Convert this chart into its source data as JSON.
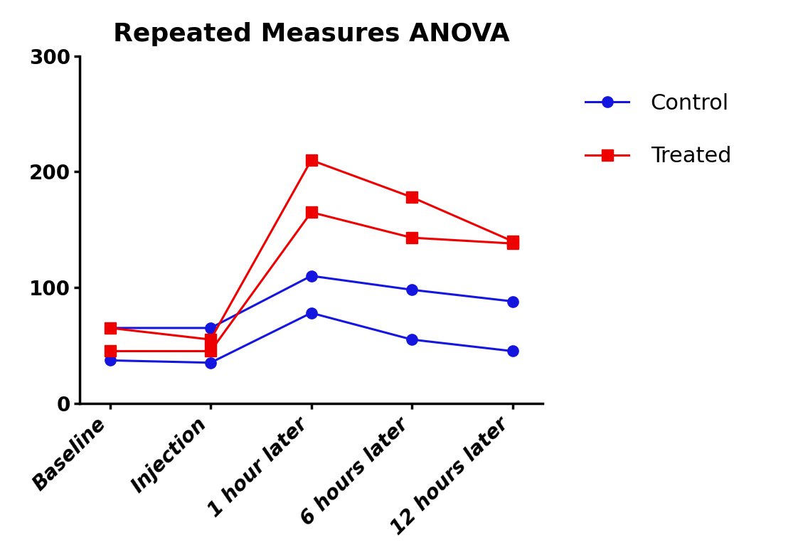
{
  "title": "Repeated Measures ANOVA",
  "categories": [
    "Baseline",
    "Injection",
    "1 hour later",
    "6 hours later",
    "12 hours later"
  ],
  "control_lines": [
    [
      65,
      65,
      110,
      98,
      88
    ],
    [
      37,
      35,
      78,
      55,
      45
    ]
  ],
  "treated_lines": [
    [
      65,
      55,
      210,
      178,
      140
    ],
    [
      45,
      45,
      165,
      143,
      138
    ]
  ],
  "control_color": "#1515e0",
  "treated_color": "#ee0000",
  "ylim": [
    0,
    300
  ],
  "yticks": [
    0,
    100,
    200,
    300
  ],
  "title_fontsize": 26,
  "tick_fontsize": 20,
  "legend_fontsize": 22,
  "linewidth": 2.2,
  "marker_size": 11,
  "background_color": "#ffffff"
}
